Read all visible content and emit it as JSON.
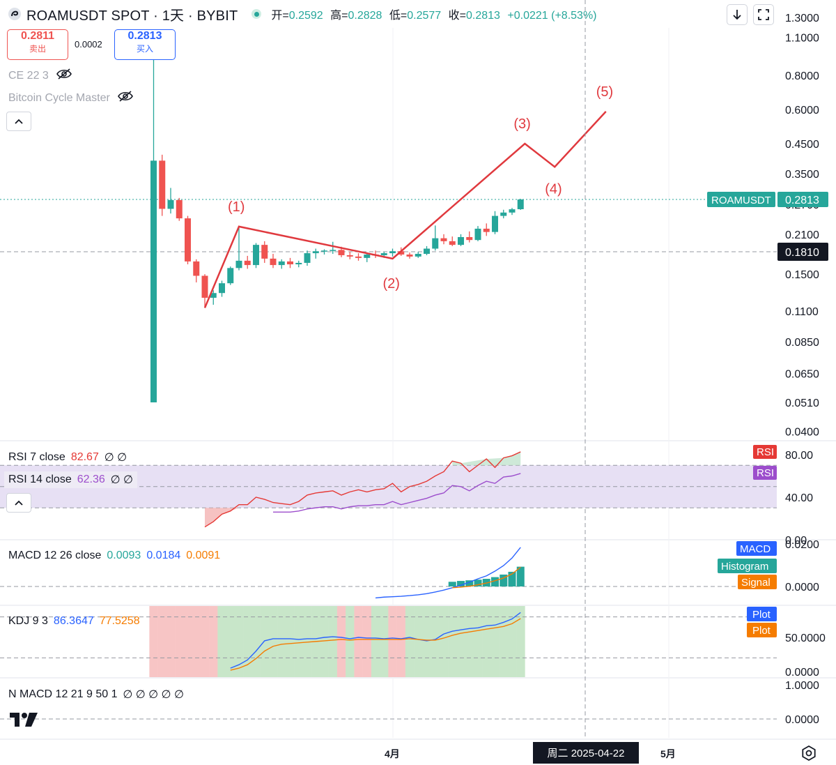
{
  "header": {
    "title": "ROAMUSDT SPOT · 1天 · BYBIT",
    "ohlc": [
      {
        "label": "开=",
        "value": "0.2592"
      },
      {
        "label": "高=",
        "value": "0.2828"
      },
      {
        "label": "低=",
        "value": "0.2577"
      },
      {
        "label": "收=",
        "value": "0.2813"
      }
    ],
    "change": "+0.0221 (+8.53%)"
  },
  "trade": {
    "sell_price": "0.2811",
    "sell_label": "卖出",
    "spread": "0.0002",
    "buy_price": "0.2813",
    "buy_label": "买入"
  },
  "overlays": {
    "ce": "CE 22 3",
    "bcm": "Bitcoin Cycle Master"
  },
  "indicators": {
    "rsi7": {
      "name": "RSI 7 close",
      "value": "82.67"
    },
    "rsi14": {
      "name": "RSI 14 close",
      "value": "62.36"
    },
    "macd": {
      "name": "MACD 12 26 close",
      "v1": "0.0093",
      "v2": "0.0184",
      "v3": "0.0091"
    },
    "kdj": {
      "name": "KDJ 9 3",
      "v1": "86.3647",
      "v2": "77.5258"
    },
    "nmacd": {
      "name": "N MACD 12 21 9 50 1",
      "symbols": "∅ ∅ ∅ ∅ ∅"
    },
    "null_symbols2": "∅ ∅"
  },
  "colors": {
    "up": "#26a69a",
    "down": "#ef5350",
    "wave": "#e0393e",
    "rsi7": "#e53935",
    "rsi14": "#9c4dcc",
    "macd": "#2962ff",
    "signal": "#f57c00",
    "kdj_k": "#2962ff",
    "kdj_d": "#f57c00",
    "rsi_band": "#e7e0f4"
  },
  "bottom": {
    "crosshair_date": "周二 2025-04-22"
  },
  "chart_data": {
    "type": "candlestick",
    "symbol": "ROAMUSDT",
    "exchange": "BYBIT",
    "interval": "1D",
    "scale": "log",
    "price_ticks": [
      "1.3000",
      "1.1000",
      "0.8000",
      "0.6000",
      "0.4500",
      "0.3500",
      "0.2700",
      "0.2100",
      "0.1500",
      "0.1100",
      "0.0850",
      "0.0650",
      "0.0510",
      "0.0400"
    ],
    "price_tick_values": [
      1.3,
      1.1,
      0.8,
      0.6,
      0.45,
      0.35,
      0.27,
      0.21,
      0.15,
      0.11,
      0.085,
      0.065,
      0.051,
      0.04
    ],
    "last_price": {
      "label": "ROAMUSDT",
      "value": "0.2813"
    },
    "crosshair_price": "0.1810",
    "x_labels": [
      "4月",
      "5月"
    ],
    "candles": [
      {
        "o": 0.051,
        "h": 0.98,
        "l": 0.051,
        "c": 0.39
      },
      {
        "o": 0.39,
        "h": 0.41,
        "l": 0.245,
        "c": 0.26
      },
      {
        "o": 0.26,
        "h": 0.31,
        "l": 0.25,
        "c": 0.28
      },
      {
        "o": 0.28,
        "h": 0.285,
        "l": 0.235,
        "c": 0.24
      },
      {
        "o": 0.24,
        "h": 0.245,
        "l": 0.163,
        "c": 0.167
      },
      {
        "o": 0.167,
        "h": 0.17,
        "l": 0.14,
        "c": 0.148
      },
      {
        "o": 0.148,
        "h": 0.15,
        "l": 0.113,
        "c": 0.123
      },
      {
        "o": 0.123,
        "h": 0.131,
        "l": 0.116,
        "c": 0.128
      },
      {
        "o": 0.128,
        "h": 0.142,
        "l": 0.124,
        "c": 0.139
      },
      {
        "o": 0.139,
        "h": 0.16,
        "l": 0.137,
        "c": 0.158
      },
      {
        "o": 0.158,
        "h": 0.224,
        "l": 0.155,
        "c": 0.168
      },
      {
        "o": 0.168,
        "h": 0.175,
        "l": 0.157,
        "c": 0.162
      },
      {
        "o": 0.162,
        "h": 0.195,
        "l": 0.158,
        "c": 0.192
      },
      {
        "o": 0.192,
        "h": 0.198,
        "l": 0.165,
        "c": 0.171
      },
      {
        "o": 0.171,
        "h": 0.178,
        "l": 0.158,
        "c": 0.162
      },
      {
        "o": 0.162,
        "h": 0.17,
        "l": 0.157,
        "c": 0.167
      },
      {
        "o": 0.167,
        "h": 0.172,
        "l": 0.158,
        "c": 0.163
      },
      {
        "o": 0.163,
        "h": 0.168,
        "l": 0.159,
        "c": 0.165
      },
      {
        "o": 0.165,
        "h": 0.183,
        "l": 0.161,
        "c": 0.179
      },
      {
        "o": 0.179,
        "h": 0.186,
        "l": 0.171,
        "c": 0.182
      },
      {
        "o": 0.182,
        "h": 0.185,
        "l": 0.177,
        "c": 0.183
      },
      {
        "o": 0.183,
        "h": 0.197,
        "l": 0.178,
        "c": 0.184
      },
      {
        "o": 0.184,
        "h": 0.189,
        "l": 0.173,
        "c": 0.176
      },
      {
        "o": 0.176,
        "h": 0.181,
        "l": 0.17,
        "c": 0.174
      },
      {
        "o": 0.174,
        "h": 0.179,
        "l": 0.168,
        "c": 0.172
      },
      {
        "o": 0.172,
        "h": 0.18,
        "l": 0.166,
        "c": 0.177
      },
      {
        "o": 0.177,
        "h": 0.183,
        "l": 0.172,
        "c": 0.176
      },
      {
        "o": 0.176,
        "h": 0.181,
        "l": 0.172,
        "c": 0.179
      },
      {
        "o": 0.179,
        "h": 0.186,
        "l": 0.174,
        "c": 0.182
      },
      {
        "o": 0.182,
        "h": 0.188,
        "l": 0.175,
        "c": 0.177
      },
      {
        "o": 0.177,
        "h": 0.18,
        "l": 0.171,
        "c": 0.174
      },
      {
        "o": 0.174,
        "h": 0.181,
        "l": 0.172,
        "c": 0.178
      },
      {
        "o": 0.178,
        "h": 0.19,
        "l": 0.176,
        "c": 0.186
      },
      {
        "o": 0.186,
        "h": 0.226,
        "l": 0.183,
        "c": 0.203
      },
      {
        "o": 0.203,
        "h": 0.21,
        "l": 0.193,
        "c": 0.198
      },
      {
        "o": 0.198,
        "h": 0.206,
        "l": 0.19,
        "c": 0.192
      },
      {
        "o": 0.192,
        "h": 0.21,
        "l": 0.19,
        "c": 0.205
      },
      {
        "o": 0.205,
        "h": 0.215,
        "l": 0.196,
        "c": 0.2
      },
      {
        "o": 0.2,
        "h": 0.225,
        "l": 0.198,
        "c": 0.22
      },
      {
        "o": 0.22,
        "h": 0.23,
        "l": 0.207,
        "c": 0.214
      },
      {
        "o": 0.214,
        "h": 0.255,
        "l": 0.21,
        "c": 0.245
      },
      {
        "o": 0.245,
        "h": 0.258,
        "l": 0.24,
        "c": 0.252
      },
      {
        "o": 0.252,
        "h": 0.262,
        "l": 0.247,
        "c": 0.259
      },
      {
        "o": 0.2592,
        "h": 0.2828,
        "l": 0.2577,
        "c": 0.2813
      }
    ],
    "wave_points": [
      {
        "label": "",
        "bar": 6,
        "price": 0.113
      },
      {
        "label": "(1)",
        "bar": 10,
        "price": 0.224
      },
      {
        "label": "(2)",
        "bar": 28,
        "price": 0.171
      },
      {
        "label": "(3)",
        "bar": 43.5,
        "price": 0.45
      },
      {
        "label": "(4)",
        "bar": 47,
        "price": 0.37
      },
      {
        "label": "(5)",
        "bar": 53,
        "price": 0.59
      }
    ],
    "rsi": {
      "ticks": [
        "80.00",
        "40.00",
        "0.00"
      ],
      "tick_values": [
        80,
        40,
        0
      ],
      "band": [
        30,
        70
      ],
      "rsi7": [
        null,
        null,
        null,
        null,
        null,
        null,
        12,
        17,
        24,
        27,
        33,
        33,
        40,
        38,
        35,
        34,
        33,
        36,
        42,
        44,
        45,
        46,
        42,
        45,
        47,
        45,
        47,
        48,
        53,
        45,
        50,
        52,
        55,
        60,
        64,
        74,
        72,
        64,
        70,
        76,
        68,
        77,
        79,
        82.67
      ],
      "rsi14": [
        null,
        null,
        null,
        null,
        null,
        null,
        null,
        null,
        null,
        null,
        null,
        null,
        null,
        null,
        26,
        26,
        26,
        27,
        29,
        30,
        31,
        31,
        29,
        31,
        32,
        32,
        33,
        33,
        36,
        33,
        35,
        37,
        39,
        42,
        44,
        51,
        50,
        46,
        51,
        55,
        53,
        59,
        60,
        62.36
      ]
    },
    "macd": {
      "ticks": [
        "0.0200",
        "0.0000"
      ],
      "tick_values": [
        0.02,
        0.0
      ],
      "macd": [
        null,
        null,
        null,
        null,
        null,
        null,
        null,
        null,
        null,
        null,
        null,
        null,
        null,
        null,
        null,
        null,
        null,
        null,
        null,
        null,
        null,
        null,
        null,
        null,
        null,
        null,
        -0.0054,
        -0.005,
        -0.0048,
        -0.0046,
        -0.0043,
        -0.0039,
        -0.0034,
        -0.0026,
        -0.0017,
        -0.0006,
        0.0006,
        0.002,
        0.0036,
        0.005,
        0.0072,
        0.0098,
        0.0134,
        0.0184
      ],
      "signal": [
        null,
        null,
        null,
        null,
        null,
        null,
        null,
        null,
        null,
        null,
        null,
        null,
        null,
        null,
        null,
        null,
        null,
        null,
        null,
        null,
        null,
        null,
        null,
        null,
        null,
        null,
        null,
        null,
        null,
        null,
        null,
        null,
        null,
        null,
        null,
        -0.0006,
        -0.0003,
        0.0001,
        0.0008,
        0.0016,
        0.0027,
        0.004,
        0.0059,
        0.0091
      ],
      "histogram": [
        null,
        null,
        null,
        null,
        null,
        null,
        null,
        null,
        null,
        null,
        null,
        null,
        null,
        null,
        null,
        null,
        null,
        null,
        null,
        null,
        null,
        null,
        null,
        null,
        null,
        null,
        null,
        null,
        null,
        null,
        null,
        null,
        null,
        null,
        null,
        0.0022,
        0.0026,
        0.0029,
        0.0032,
        0.0036,
        0.0044,
        0.0056,
        0.0069,
        0.0093
      ],
      "legend": [
        "MACD",
        "Histogram",
        "Signal"
      ]
    },
    "kdj": {
      "ticks": [
        "50.0000",
        "0.0000"
      ],
      "tick_values": [
        50,
        0
      ],
      "k": [
        null,
        null,
        null,
        null,
        null,
        null,
        null,
        null,
        null,
        5,
        10,
        17,
        30,
        45,
        48,
        48,
        48,
        47,
        48,
        48,
        50,
        51,
        50,
        48,
        50,
        49,
        49,
        48,
        49,
        48,
        50,
        47,
        45,
        47,
        55,
        59,
        61,
        63,
        64,
        67,
        68,
        72,
        77,
        86.3647
      ],
      "d": [
        null,
        null,
        null,
        null,
        null,
        null,
        null,
        null,
        null,
        2,
        5,
        10,
        19,
        30,
        37,
        40,
        41,
        42,
        43,
        44,
        45,
        46,
        47,
        46,
        47,
        47,
        47,
        47,
        47,
        47,
        48,
        47,
        46,
        46,
        49,
        53,
        56,
        58,
        60,
        62,
        64,
        66,
        70,
        77.5258
      ],
      "regions": [
        "red",
        "red",
        "red",
        "red",
        "red",
        "red",
        "red",
        "red",
        "green",
        "green",
        "green",
        "green",
        "green",
        "green",
        "green",
        "green",
        "green",
        "green",
        "green",
        "green",
        "green",
        "green",
        "red",
        "green",
        "red",
        "red",
        "green",
        "green",
        "red",
        "red",
        "green",
        "green",
        "green",
        "green",
        "green",
        "green",
        "green",
        "green",
        "green",
        "green",
        "green",
        "green",
        "green",
        "green"
      ],
      "legend": [
        "Plot",
        "Plot"
      ]
    },
    "nmacd": {
      "ticks": [
        "1.0000",
        "0.0000"
      ],
      "tick_values": [
        1,
        0
      ]
    }
  }
}
